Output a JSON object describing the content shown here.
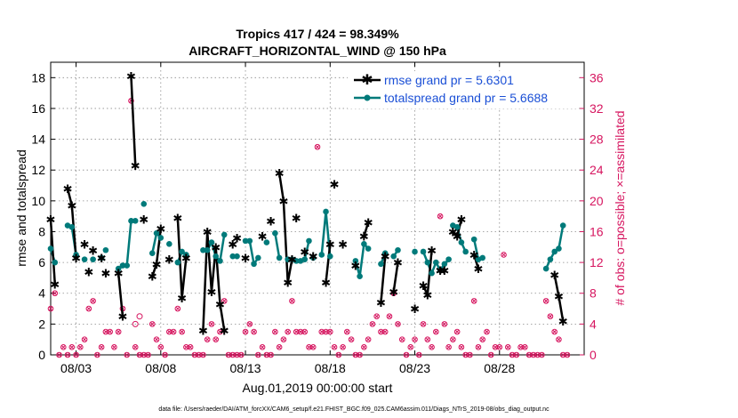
{
  "chart_data": {
    "type": "line",
    "title": "Tropics 417 / 424 = 98.349%",
    "subtitle": "AIRCRAFT_HORIZONTAL_WIND @ 150 hPa",
    "xlabel": "Aug.01,2019 00:00:00 start",
    "ylabel": "rmse and totalspread",
    "y2label": "# of obs: o=possible; ×=assimilated",
    "footer": "data file: /Users/raeder/DAI/ATM_forcXX/CAM6_setup/f.e21.FHIST_BGC.f09_025.CAM6assim.011/Diags_NTrS_2019-08/obs_diag_output.nc",
    "xlim": [
      1.5,
      33.0
    ],
    "ylim": [
      0,
      19
    ],
    "y2lim": [
      0,
      38
    ],
    "xticks": [
      3,
      8,
      13,
      18,
      23,
      28
    ],
    "xticklabels": [
      "08/03",
      "08/08",
      "08/13",
      "08/18",
      "08/23",
      "08/28"
    ],
    "yticks": [
      0,
      2,
      4,
      6,
      8,
      10,
      12,
      14,
      16,
      18
    ],
    "y2ticks": [
      0,
      4,
      8,
      12,
      16,
      20,
      24,
      28,
      32,
      36
    ],
    "legend": [
      "rmse grand pr = 5.6301",
      "totalspread grand pr = 5.6688"
    ],
    "colors": {
      "rmse": "#000000",
      "spread": "#007a7a",
      "obs": "#d6155f"
    },
    "series": [
      {
        "name": "rmse",
        "segments": [
          [
            [
              1.5,
              8.8
            ],
            [
              1.75,
              4.6
            ]
          ],
          [
            [
              2.5,
              10.8
            ],
            [
              2.75,
              9.7
            ],
            [
              3.0,
              6.3
            ]
          ],
          [
            [
              3.5,
              7.2
            ]
          ],
          [
            [
              3.75,
              5.4
            ]
          ],
          [
            [
              4.0,
              6.8
            ]
          ],
          [
            [
              4.5,
              6.3
            ]
          ],
          [
            [
              4.75,
              5.3
            ]
          ],
          [
            [
              5.5,
              5.3
            ],
            [
              5.75,
              2.5
            ]
          ],
          [
            [
              6.25,
              18.1
            ],
            [
              6.5,
              12.3
            ]
          ],
          [
            [
              7.0,
              8.8
            ]
          ],
          [
            [
              7.5,
              5.1
            ],
            [
              7.75,
              5.9
            ],
            [
              8.0,
              8.2
            ]
          ],
          [
            [
              8.5,
              6.2
            ]
          ],
          [
            [
              9.0,
              8.9
            ],
            [
              9.25,
              3.7
            ],
            [
              9.5,
              6.3
            ]
          ],
          [
            [
              10.5,
              1.6
            ],
            [
              10.75,
              8.0
            ],
            [
              11.0,
              4.1
            ],
            [
              11.25,
              7.0
            ],
            [
              11.5,
              3.3
            ],
            [
              11.75,
              1.6
            ]
          ],
          [
            [
              12.25,
              7.2
            ]
          ],
          [
            [
              12.5,
              7.6
            ]
          ],
          [
            [
              13.0,
              6.3
            ]
          ],
          [
            [
              14.0,
              7.7
            ]
          ],
          [
            [
              14.5,
              8.7
            ]
          ],
          [
            [
              15.0,
              11.8
            ],
            [
              15.25,
              10.0
            ],
            [
              15.5,
              4.7
            ],
            [
              15.75,
              6.2
            ]
          ],
          [
            [
              16.0,
              8.9
            ]
          ],
          [
            [
              16.5,
              6.7
            ]
          ],
          [
            [
              17.0,
              6.4
            ]
          ],
          [
            [
              17.75,
              4.7
            ],
            [
              18.0,
              7.2
            ]
          ],
          [
            [
              18.25,
              11.1
            ]
          ],
          [
            [
              18.75,
              7.2
            ]
          ],
          [
            [
              19.5,
              5.8
            ]
          ],
          [
            [
              20.0,
              7.7
            ],
            [
              20.25,
              8.6
            ]
          ],
          [
            [
              21.0,
              3.4
            ],
            [
              21.25,
              6.4
            ]
          ],
          [
            [
              21.75,
              4.1
            ],
            [
              22.0,
              6.0
            ]
          ],
          [
            [
              23.0,
              3.0
            ]
          ],
          [
            [
              23.5,
              4.5
            ],
            [
              23.75,
              3.9
            ],
            [
              24.0,
              6.8
            ]
          ],
          [
            [
              24.5,
              5.5
            ],
            [
              24.75,
              5.5
            ]
          ],
          [
            [
              25.25,
              8.0
            ],
            [
              25.5,
              7.7
            ],
            [
              25.75,
              8.8
            ]
          ],
          [
            [
              26.5,
              6.5
            ],
            [
              26.75,
              5.6
            ]
          ],
          [
            [
              31.25,
              5.2
            ],
            [
              31.5,
              3.8
            ],
            [
              31.75,
              2.2
            ]
          ]
        ]
      },
      {
        "name": "totalspread",
        "segments": [
          [
            [
              1.5,
              6.9
            ],
            [
              1.75,
              6.0
            ]
          ],
          [
            [
              2.5,
              8.4
            ],
            [
              2.75,
              8.3
            ],
            [
              3.0,
              6.5
            ]
          ],
          [
            [
              3.5,
              6.2
            ]
          ],
          [
            [
              4.0,
              6.2
            ]
          ],
          [
            [
              4.5,
              6.3
            ]
          ],
          [
            [
              4.75,
              6.8
            ]
          ],
          [
            [
              5.5,
              5.6
            ],
            [
              5.75,
              5.8
            ],
            [
              6.0,
              5.8
            ],
            [
              6.25,
              8.7
            ],
            [
              6.5,
              8.7
            ]
          ],
          [
            [
              7.0,
              9.8
            ]
          ],
          [
            [
              7.5,
              6.6
            ],
            [
              7.75,
              7.9
            ],
            [
              8.0,
              7.6
            ]
          ],
          [
            [
              8.5,
              7.2
            ]
          ],
          [
            [
              9.0,
              6.0
            ],
            [
              9.25,
              6.7
            ],
            [
              9.5,
              6.5
            ]
          ],
          [
            [
              10.5,
              6.8
            ],
            [
              10.75,
              6.8
            ],
            [
              11.0,
              7.3
            ],
            [
              11.25,
              6.4
            ],
            [
              11.5,
              6.1
            ],
            [
              11.75,
              7.8
            ]
          ],
          [
            [
              12.25,
              6.4
            ]
          ],
          [
            [
              12.5,
              6.4
            ]
          ],
          [
            [
              13.0,
              7.4
            ],
            [
              13.25,
              7.4
            ],
            [
              13.5,
              5.9
            ],
            [
              13.75,
              6.3
            ]
          ],
          [
            [
              14.25,
              7.3
            ]
          ],
          [
            [
              14.75,
              7.9
            ],
            [
              15.0,
              6.3
            ]
          ],
          [
            [
              15.5,
              6.2
            ]
          ],
          [
            [
              15.75,
              6.2
            ]
          ],
          [
            [
              16.0,
              6.1
            ],
            [
              16.25,
              6.1
            ],
            [
              16.5,
              6.2
            ],
            [
              16.75,
              7.4
            ]
          ],
          [
            [
              17.0,
              6.3
            ]
          ],
          [
            [
              17.5,
              6.5
            ],
            [
              17.75,
              9.3
            ],
            [
              18.0,
              6.4
            ]
          ],
          [
            [
              19.5,
              6.1
            ],
            [
              19.75,
              5.1
            ],
            [
              20.0,
              7.2
            ],
            [
              20.25,
              6.9
            ]
          ],
          [
            [
              21.0,
              5.9
            ],
            [
              21.25,
              6.6
            ]
          ],
          [
            [
              21.75,
              6.4
            ],
            [
              22.0,
              6.8
            ]
          ],
          [
            [
              23.0,
              6.7
            ]
          ],
          [
            [
              23.5,
              6.7
            ],
            [
              23.75,
              6.0
            ],
            [
              24.0,
              5.3
            ],
            [
              24.25,
              6.0
            ],
            [
              24.5,
              5.5
            ],
            [
              24.75,
              5.9
            ],
            [
              25.0,
              6.2
            ]
          ],
          [
            [
              25.25,
              8.4
            ],
            [
              25.5,
              8.3
            ],
            [
              25.75,
              7.3
            ],
            [
              26.0,
              6.7
            ]
          ],
          [
            [
              26.5,
              7.5
            ],
            [
              26.75,
              6.2
            ]
          ],
          [
            [
              27.0,
              6.3
            ]
          ],
          [
            [
              30.75,
              5.6
            ],
            [
              31.0,
              6.2
            ],
            [
              31.25,
              6.7
            ]
          ],
          [
            [
              31.5,
              6.9
            ],
            [
              31.75,
              8.4
            ]
          ]
        ]
      }
    ],
    "obs_assimilated": [
      [
        1.5,
        6
      ],
      [
        1.75,
        8
      ],
      [
        2.0,
        0
      ],
      [
        2.25,
        1
      ],
      [
        2.5,
        0
      ],
      [
        2.75,
        1
      ],
      [
        3.0,
        0
      ],
      [
        3.25,
        1
      ],
      [
        3.5,
        2
      ],
      [
        3.75,
        6
      ],
      [
        4.0,
        7
      ],
      [
        4.25,
        0
      ],
      [
        4.5,
        1
      ],
      [
        4.75,
        3
      ],
      [
        5.0,
        3
      ],
      [
        5.25,
        1
      ],
      [
        5.5,
        3
      ],
      [
        5.75,
        6
      ],
      [
        6.0,
        0
      ],
      [
        6.25,
        33
      ],
      [
        6.5,
        1
      ],
      [
        6.75,
        0
      ],
      [
        7.0,
        0
      ],
      [
        7.25,
        0
      ],
      [
        7.5,
        4
      ],
      [
        7.75,
        2
      ],
      [
        8.0,
        1
      ],
      [
        8.25,
        0
      ],
      [
        8.5,
        3
      ],
      [
        8.75,
        3
      ],
      [
        9.0,
        6
      ],
      [
        9.25,
        3
      ],
      [
        9.5,
        1
      ],
      [
        9.75,
        1
      ],
      [
        10.0,
        0
      ],
      [
        10.25,
        0
      ],
      [
        10.5,
        0
      ],
      [
        10.75,
        2
      ],
      [
        11.0,
        4
      ],
      [
        11.25,
        2
      ],
      [
        11.5,
        3
      ],
      [
        11.75,
        7
      ],
      [
        12.0,
        0
      ],
      [
        12.25,
        0
      ],
      [
        12.5,
        0
      ],
      [
        12.75,
        0
      ],
      [
        13.0,
        3
      ],
      [
        13.25,
        4
      ],
      [
        13.5,
        3
      ],
      [
        13.75,
        0
      ],
      [
        14.0,
        1
      ],
      [
        14.25,
        0
      ],
      [
        14.5,
        0
      ],
      [
        14.75,
        3
      ],
      [
        15.0,
        1
      ],
      [
        15.25,
        2
      ],
      [
        15.5,
        3
      ],
      [
        15.75,
        7
      ],
      [
        16.0,
        3
      ],
      [
        16.25,
        3
      ],
      [
        16.5,
        3
      ],
      [
        16.75,
        1
      ],
      [
        17.0,
        1
      ],
      [
        17.25,
        27
      ],
      [
        17.5,
        3
      ],
      [
        17.75,
        3
      ],
      [
        18.0,
        3
      ],
      [
        18.25,
        1
      ],
      [
        18.5,
        0
      ],
      [
        18.75,
        1
      ],
      [
        19.0,
        3
      ],
      [
        19.25,
        2
      ],
      [
        19.5,
        0
      ],
      [
        19.75,
        0
      ],
      [
        20.0,
        1
      ],
      [
        20.25,
        2
      ],
      [
        20.5,
        4
      ],
      [
        20.75,
        5
      ],
      [
        21.0,
        3
      ],
      [
        21.25,
        3
      ],
      [
        21.5,
        5
      ],
      [
        21.75,
        8
      ],
      [
        22.0,
        4
      ],
      [
        22.25,
        2
      ],
      [
        22.5,
        0
      ],
      [
        22.75,
        1
      ],
      [
        23.0,
        2
      ],
      [
        23.25,
        0
      ],
      [
        23.5,
        4
      ],
      [
        23.75,
        2
      ],
      [
        24.0,
        1
      ],
      [
        24.25,
        3
      ],
      [
        24.5,
        18
      ],
      [
        24.75,
        4
      ],
      [
        25.0,
        1
      ],
      [
        25.25,
        2
      ],
      [
        25.5,
        3
      ],
      [
        25.75,
        1
      ],
      [
        26.0,
        0
      ],
      [
        26.25,
        0
      ],
      [
        26.5,
        7
      ],
      [
        26.75,
        1
      ],
      [
        27.0,
        2
      ],
      [
        27.25,
        3
      ],
      [
        27.5,
        0
      ],
      [
        27.75,
        1
      ],
      [
        28.0,
        1
      ],
      [
        28.25,
        13
      ],
      [
        28.5,
        1
      ],
      [
        28.75,
        0
      ],
      [
        29.0,
        0
      ],
      [
        29.25,
        1
      ],
      [
        29.5,
        1
      ],
      [
        29.75,
        0
      ],
      [
        30.0,
        0
      ],
      [
        30.25,
        0
      ],
      [
        30.5,
        0
      ],
      [
        30.75,
        7
      ],
      [
        31.0,
        5
      ],
      [
        31.25,
        3
      ],
      [
        31.5,
        2
      ],
      [
        31.75,
        0
      ],
      [
        32.0,
        0
      ]
    ],
    "obs_possible": [
      [
        6.5,
        4
      ],
      [
        6.75,
        5
      ]
    ]
  }
}
